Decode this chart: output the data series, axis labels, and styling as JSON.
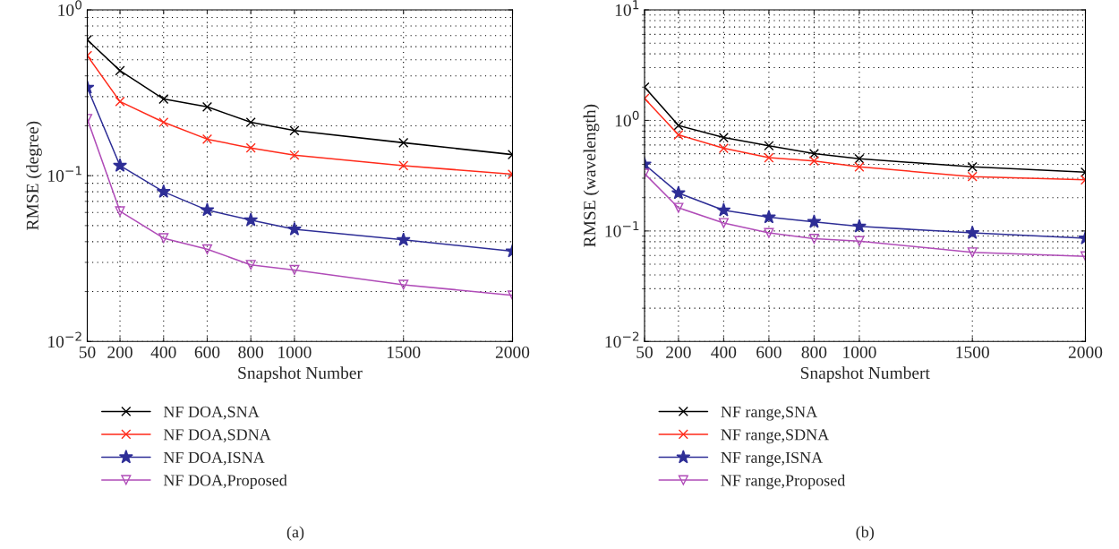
{
  "chart_data": [
    {
      "type": "line",
      "xlabel": "Snapshot Number",
      "ylabel": "RMSE (degree)",
      "log": "y",
      "grid": true,
      "legend": "bottom left",
      "x": [
        50,
        200,
        400,
        600,
        800,
        1000,
        1500,
        2000
      ],
      "xlim": [
        50,
        2000
      ],
      "xticks": [
        50,
        200,
        400,
        600,
        800,
        1000,
        1500,
        2000
      ],
      "ylim": [
        0.01,
        1
      ],
      "yticks": [
        {
          "value": 0.01,
          "label": "10$^{−2}$"
        },
        {
          "value": 0.1,
          "label": "10$^{−1}$"
        },
        {
          "value": 1,
          "label": "10$^{0}$"
        }
      ],
      "annotations": [
        "(a)"
      ],
      "series": [
        {
          "name": "NF DOA,SNA",
          "color": "#000000",
          "marker": "cross",
          "values": [
            0.66,
            0.43,
            0.29,
            0.26,
            0.21,
            0.187,
            0.158,
            0.134
          ]
        },
        {
          "name": "NF DOA,SDNA",
          "color": "#ff2a1a",
          "marker": "cross",
          "values": [
            0.53,
            0.28,
            0.21,
            0.166,
            0.147,
            0.133,
            0.115,
            0.102
          ]
        },
        {
          "name": "NF DOA,ISNA",
          "color": "#2e2e96",
          "marker": "star",
          "values": [
            0.34,
            0.115,
            0.08,
            0.062,
            0.054,
            0.0475,
            0.041,
            0.035
          ]
        },
        {
          "name": "NF DOA,Proposed",
          "color": "#b04cb8",
          "marker": "triangle",
          "values": [
            0.22,
            0.061,
            0.042,
            0.036,
            0.029,
            0.027,
            0.022,
            0.019
          ]
        }
      ]
    },
    {
      "type": "line",
      "xlabel": "Snapshot Numbert",
      "ylabel": "RMSE (wavelength)",
      "log": "y",
      "grid": true,
      "legend": "bottom left",
      "x": [
        50,
        200,
        400,
        600,
        800,
        1000,
        1500,
        2000
      ],
      "xlim": [
        50,
        2000
      ],
      "xticks": [
        50,
        200,
        400,
        600,
        800,
        1000,
        1500,
        2000
      ],
      "ylim": [
        0.01,
        10
      ],
      "yticks": [
        {
          "value": 0.01,
          "label": "10$^{−2}$"
        },
        {
          "value": 0.1,
          "label": "10$^{−1}$"
        },
        {
          "value": 1,
          "label": "10$^{0}$"
        },
        {
          "value": 10,
          "label": "10$^{1}$"
        }
      ],
      "annotations": [
        "(b)"
      ],
      "series": [
        {
          "name": "NF range,SNA",
          "color": "#000000",
          "marker": "cross",
          "values": [
            2.0,
            0.9,
            0.7,
            0.59,
            0.5,
            0.45,
            0.38,
            0.34
          ]
        },
        {
          "name": "NF range,SDNA",
          "color": "#ff2a1a",
          "marker": "cross",
          "values": [
            1.58,
            0.74,
            0.56,
            0.46,
            0.43,
            0.38,
            0.31,
            0.29
          ]
        },
        {
          "name": "NF range,ISNA",
          "color": "#2e2e96",
          "marker": "star",
          "values": [
            0.4,
            0.22,
            0.154,
            0.133,
            0.121,
            0.11,
            0.096,
            0.086
          ]
        },
        {
          "name": "NF range,Proposed",
          "color": "#b04cb8",
          "marker": "triangle",
          "values": [
            0.33,
            0.162,
            0.118,
            0.096,
            0.085,
            0.081,
            0.064,
            0.059
          ]
        }
      ]
    }
  ]
}
